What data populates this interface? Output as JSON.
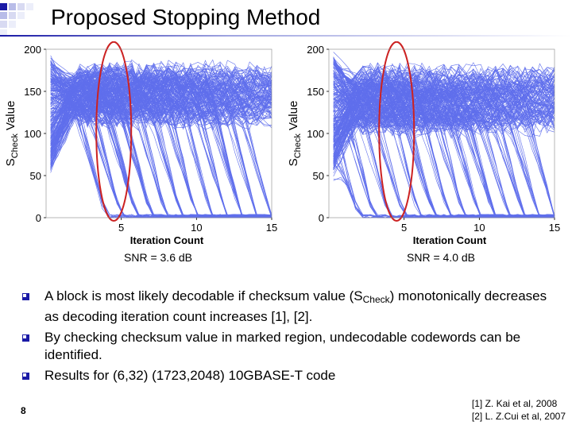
{
  "slide": {
    "title": "Proposed Stopping Method",
    "page_number": "8",
    "accent_color": "#1a1aa6"
  },
  "bullets": [
    {
      "pre": "A block is most likely decodable if checksum value (S",
      "sub": "Check",
      "post": ") monotonically decreases as decoding iteration count increases [1], [2]."
    },
    {
      "pre": "By checking checksum value in marked region, undecodable codewords can be identified.",
      "sub": "",
      "post": ""
    },
    {
      "pre": "Results for (6,32) (1723,2048) 10GBASE-T code",
      "sub": "",
      "post": ""
    }
  ],
  "references": [
    "[1] Z. Kai et al, 2008",
    "[2] L. Z.Cui et al, 2007"
  ],
  "chart_data": [
    {
      "type": "line",
      "caption": "SNR = 3.6 dB",
      "xlabel": "Iteration Count",
      "ylabel_main": "S",
      "ylabel_sub": "Check",
      "ylabel_suffix": " Value",
      "xlim": [
        0,
        15
      ],
      "ylim": [
        0,
        200
      ],
      "xticks": [
        5,
        10,
        15
      ],
      "yticks": [
        0,
        50,
        100,
        150,
        200
      ],
      "highlight": {
        "shape": "ellipse",
        "x_center": 4.5,
        "y_range": [
          0,
          205
        ],
        "color": "#cc2222"
      },
      "line_color": "#2b3fe6",
      "series_summary": {
        "plateau_range": [
          120,
          170
        ],
        "descending_range_at_iter_5": [
          0,
          120
        ],
        "start_range": [
          40,
          200
        ],
        "convergence_iterations": [
          4,
          5,
          6,
          7,
          8,
          9,
          10,
          11,
          12,
          13,
          14,
          15
        ]
      }
    },
    {
      "type": "line",
      "caption": "SNR = 4.0 dB",
      "xlabel": "Iteration Count",
      "ylabel_main": "S",
      "ylabel_sub": "Check",
      "ylabel_suffix": " Value",
      "xlim": [
        0,
        15
      ],
      "ylim": [
        0,
        200
      ],
      "xticks": [
        5,
        10,
        15
      ],
      "yticks": [
        0,
        50,
        100,
        150,
        200
      ],
      "highlight": {
        "shape": "ellipse",
        "x_center": 4.5,
        "y_range": [
          0,
          205
        ],
        "color": "#cc2222"
      },
      "line_color": "#2b3fe6",
      "series_summary": {
        "plateau_range": [
          110,
          170
        ],
        "descending_range_at_iter_5": [
          0,
          130
        ],
        "start_range": [
          40,
          200
        ],
        "convergence_iterations": [
          2,
          3,
          4,
          5,
          6,
          7,
          8,
          9,
          10,
          11,
          12,
          13,
          14,
          15
        ]
      }
    }
  ]
}
